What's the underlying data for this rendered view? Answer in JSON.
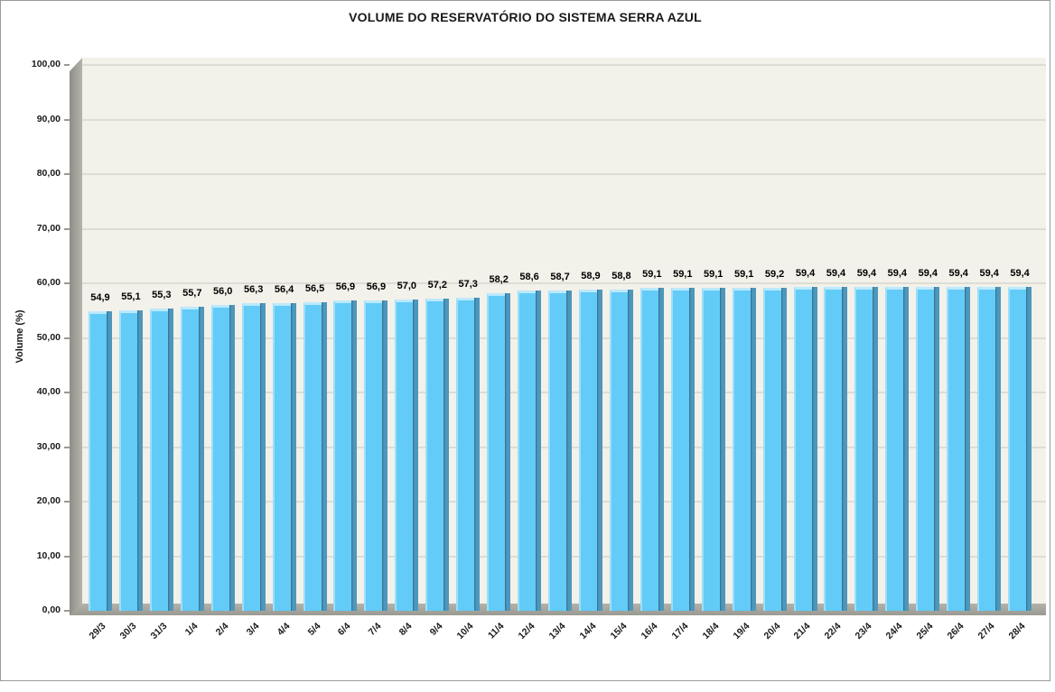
{
  "chart_data": {
    "type": "bar",
    "style": "3d",
    "title": "VOLUME DO RESERVATÓRIO DO SISTEMA SERRA AZUL",
    "xlabel": "",
    "ylabel": "Volume (%)",
    "ylim": [
      0,
      100
    ],
    "ytick_step": 10,
    "ytick_labels": [
      "0,00",
      "10,00",
      "20,00",
      "30,00",
      "40,00",
      "50,00",
      "60,00",
      "70,00",
      "80,00",
      "90,00",
      "100,00"
    ],
    "grid": true,
    "legend": "none",
    "categories": [
      "29/3",
      "30/3",
      "31/3",
      "1/4",
      "2/4",
      "3/4",
      "4/4",
      "5/4",
      "6/4",
      "7/4",
      "8/4",
      "9/4",
      "10/4",
      "11/4",
      "12/4",
      "13/4",
      "14/4",
      "15/4",
      "16/4",
      "17/4",
      "18/4",
      "19/4",
      "20/4",
      "21/4",
      "22/4",
      "23/4",
      "24/4",
      "25/4",
      "26/4",
      "27/4",
      "28/4"
    ],
    "values": [
      54.9,
      55.1,
      55.3,
      55.7,
      56.0,
      56.3,
      56.4,
      56.5,
      56.9,
      56.9,
      57.0,
      57.2,
      57.3,
      58.2,
      58.6,
      58.7,
      58.9,
      58.8,
      59.1,
      59.1,
      59.1,
      59.1,
      59.2,
      59.4,
      59.4,
      59.4,
      59.4,
      59.4,
      59.4,
      59.4,
      59.4
    ],
    "value_labels": [
      "54,9",
      "55,1",
      "55,3",
      "55,7",
      "56,0",
      "56,3",
      "56,4",
      "56,5",
      "56,9",
      "56,9",
      "57,0",
      "57,2",
      "57,3",
      "58,2",
      "58,6",
      "58,7",
      "58,9",
      "58,8",
      "59,1",
      "59,1",
      "59,1",
      "59,1",
      "59,2",
      "59,4",
      "59,4",
      "59,4",
      "59,4",
      "59,4",
      "59,4",
      "59,4",
      "59,4"
    ]
  },
  "colors": {
    "bar_face": "#63CBF7",
    "bar_left_highlight": "#9CDFFB",
    "bar_top": "#BCE9FD",
    "bar_side_seam": "#2F6E8E",
    "bar_side": "#4E97BC",
    "plot_bg": "#F2F1EA",
    "gridline": "#DDDCD5",
    "wall_light": "#B4B4AC",
    "wall_dark": "#8E8E86",
    "floor_light": "#B2B2AA",
    "floor_dark": "#9A9A92",
    "text": "#1A1A1A",
    "frame_border": "#9A9A9A"
  }
}
